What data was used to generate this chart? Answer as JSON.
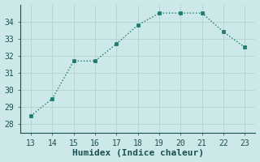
{
  "x": [
    13,
    14,
    15,
    16,
    17,
    18,
    19,
    20,
    21,
    22,
    23
  ],
  "y": [
    28.5,
    29.5,
    31.7,
    31.7,
    32.7,
    33.8,
    34.5,
    34.5,
    34.5,
    33.4,
    32.5
  ],
  "line_color": "#1a7a6e",
  "marker_color": "#1a7a6e",
  "bg_color": "#cce8e8",
  "grid_color": "#b8d4d4",
  "xlabel": "Humidex (Indice chaleur)",
  "xlabel_color": "#1a5050",
  "tick_color": "#1a5050",
  "spine_color": "#1a5050",
  "xlim": [
    12.5,
    23.5
  ],
  "ylim": [
    27.5,
    35.0
  ],
  "yticks": [
    28,
    29,
    30,
    31,
    32,
    33,
    34
  ],
  "xticks": [
    13,
    14,
    15,
    16,
    17,
    18,
    19,
    20,
    21,
    22,
    23
  ],
  "font_size": 7,
  "xlabel_font_size": 8
}
